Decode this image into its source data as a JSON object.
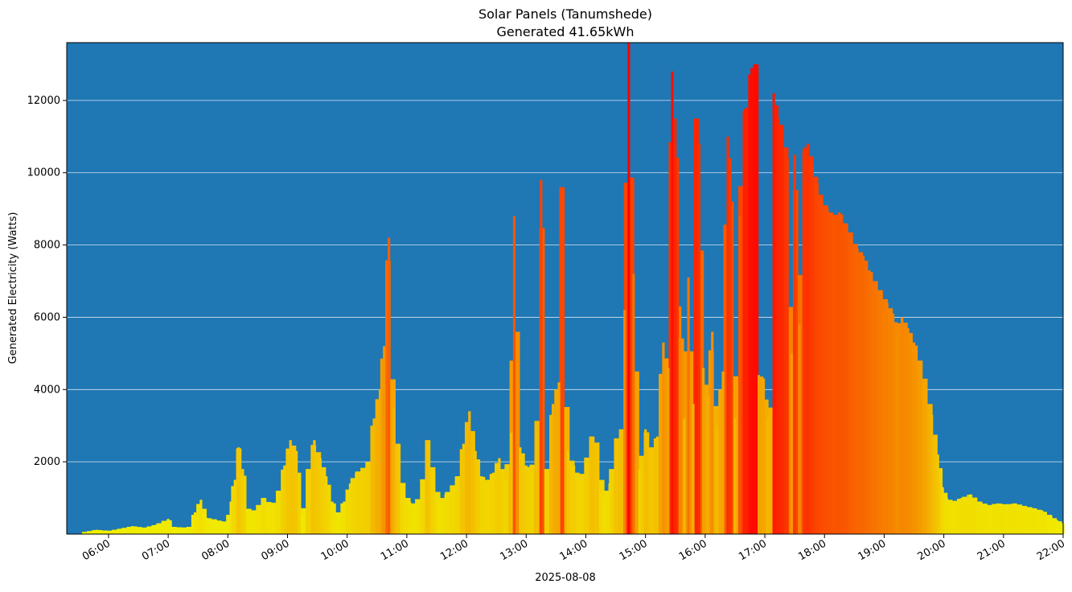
{
  "chart_data": {
    "type": "bar",
    "title": "Solar Panels (Tanumshede)",
    "subtitle": "Generated 41.65kWh",
    "xlabel": "2025-08-08",
    "ylabel": "Generated Electricity (Watts)",
    "ylim": [
      0,
      13600
    ],
    "xlim_hours": [
      5.3,
      22.0
    ],
    "grid": "y",
    "background_color": "#1f77b4",
    "gridline_color": "#d9e6f2",
    "bar_color_low": "#f0f000",
    "bar_color_high": "#ff0000",
    "yticks": [
      2000,
      4000,
      6000,
      8000,
      10000,
      12000
    ],
    "ytick_labels": [
      "2000",
      "4000",
      "6000",
      "8000",
      "10000",
      "12000"
    ],
    "xticks_hours": [
      6,
      7,
      8,
      9,
      10,
      11,
      12,
      13,
      14,
      15,
      16,
      17,
      18,
      19,
      20,
      21,
      22
    ],
    "xtick_labels": [
      "06:00",
      "07:00",
      "08:00",
      "09:00",
      "10:00",
      "11:00",
      "12:00",
      "13:00",
      "14:00",
      "15:00",
      "16:00",
      "17:00",
      "18:00",
      "19:00",
      "20:00",
      "21:00",
      "22:00"
    ],
    "bar_width_minutes": 5,
    "series": [
      {
        "name": "Generated Electricity",
        "points": [
          [
            5.6,
            60
          ],
          [
            5.8,
            120
          ],
          [
            6.0,
            90
          ],
          [
            6.2,
            150
          ],
          [
            6.4,
            220
          ],
          [
            6.6,
            180
          ],
          [
            6.8,
            260
          ],
          [
            7.0,
            420
          ],
          [
            7.1,
            200
          ],
          [
            7.25,
            180
          ],
          [
            7.35,
            200
          ],
          [
            7.45,
            600
          ],
          [
            7.55,
            950
          ],
          [
            7.65,
            450
          ],
          [
            7.8,
            400
          ],
          [
            7.9,
            350
          ],
          [
            8.0,
            350
          ],
          [
            8.05,
            900
          ],
          [
            8.12,
            1500
          ],
          [
            8.18,
            2400
          ],
          [
            8.25,
            1800
          ],
          [
            8.35,
            700
          ],
          [
            8.45,
            650
          ],
          [
            8.6,
            1000
          ],
          [
            8.75,
            800
          ],
          [
            8.85,
            1200
          ],
          [
            8.95,
            1900
          ],
          [
            9.05,
            2600
          ],
          [
            9.15,
            2300
          ],
          [
            9.25,
            500
          ],
          [
            9.35,
            1800
          ],
          [
            9.45,
            2600
          ],
          [
            9.55,
            2100
          ],
          [
            9.65,
            1600
          ],
          [
            9.75,
            900
          ],
          [
            9.85,
            600
          ],
          [
            9.95,
            900
          ],
          [
            10.05,
            1400
          ],
          [
            10.15,
            1700
          ],
          [
            10.25,
            1800
          ],
          [
            10.35,
            2000
          ],
          [
            10.45,
            3200
          ],
          [
            10.55,
            4000
          ],
          [
            10.62,
            5200
          ],
          [
            10.7,
            8200
          ],
          [
            10.78,
            3500
          ],
          [
            10.85,
            2500
          ],
          [
            10.95,
            1200
          ],
          [
            11.05,
            900
          ],
          [
            11.15,
            800
          ],
          [
            11.25,
            1300
          ],
          [
            11.35,
            2600
          ],
          [
            11.45,
            1700
          ],
          [
            11.55,
            900
          ],
          [
            11.65,
            1100
          ],
          [
            11.75,
            1300
          ],
          [
            11.85,
            1600
          ],
          [
            11.95,
            2500
          ],
          [
            12.05,
            3400
          ],
          [
            12.15,
            2300
          ],
          [
            12.25,
            1600
          ],
          [
            12.35,
            1500
          ],
          [
            12.45,
            1700
          ],
          [
            12.55,
            2100
          ],
          [
            12.65,
            1500
          ],
          [
            12.75,
            2800
          ],
          [
            12.8,
            8800
          ],
          [
            12.9,
            2400
          ],
          [
            13.0,
            1900
          ],
          [
            13.08,
            1700
          ],
          [
            13.18,
            2800
          ],
          [
            13.25,
            9800
          ],
          [
            13.35,
            1800
          ],
          [
            13.45,
            3600
          ],
          [
            13.55,
            4200
          ],
          [
            13.6,
            9600
          ],
          [
            13.7,
            2300
          ],
          [
            13.8,
            1900
          ],
          [
            13.9,
            1500
          ],
          [
            14.0,
            2000
          ],
          [
            14.1,
            2700
          ],
          [
            14.2,
            2500
          ],
          [
            14.3,
            1000
          ],
          [
            14.4,
            1400
          ],
          [
            14.5,
            2600
          ],
          [
            14.6,
            2900
          ],
          [
            14.65,
            6200
          ],
          [
            14.72,
            13600
          ],
          [
            14.8,
            7200
          ],
          [
            14.9,
            1800
          ],
          [
            15.0,
            2900
          ],
          [
            15.1,
            2400
          ],
          [
            15.2,
            2700
          ],
          [
            15.3,
            5300
          ],
          [
            15.38,
            4600
          ],
          [
            15.45,
            12800
          ],
          [
            15.5,
            11500
          ],
          [
            15.58,
            6300
          ],
          [
            15.65,
            3200
          ],
          [
            15.72,
            7100
          ],
          [
            15.8,
            3600
          ],
          [
            15.85,
            11500
          ],
          [
            15.9,
            10800
          ],
          [
            15.97,
            4600
          ],
          [
            16.05,
            3800
          ],
          [
            16.12,
            5600
          ],
          [
            16.2,
            3000
          ],
          [
            16.3,
            4500
          ],
          [
            16.38,
            11000
          ],
          [
            16.42,
            10400
          ],
          [
            16.5,
            3200
          ],
          [
            16.58,
            8800
          ],
          [
            16.65,
            11700
          ],
          [
            16.7,
            11800
          ],
          [
            16.78,
            12900
          ],
          [
            16.85,
            13000
          ],
          [
            16.9,
            4400
          ],
          [
            16.98,
            4300
          ],
          [
            17.05,
            3200
          ],
          [
            17.1,
            3500
          ],
          [
            17.15,
            12200
          ],
          [
            17.22,
            11500
          ],
          [
            17.3,
            11200
          ],
          [
            17.38,
            10400
          ],
          [
            17.45,
            5000
          ],
          [
            17.5,
            10500
          ],
          [
            17.58,
            5800
          ],
          [
            17.65,
            10600
          ],
          [
            17.72,
            10800
          ],
          [
            17.8,
            10200
          ],
          [
            17.88,
            9700
          ],
          [
            17.95,
            9300
          ],
          [
            18.05,
            9000
          ],
          [
            18.15,
            8800
          ],
          [
            18.25,
            8900
          ],
          [
            18.35,
            8600
          ],
          [
            18.45,
            8300
          ],
          [
            18.55,
            7900
          ],
          [
            18.65,
            7700
          ],
          [
            18.75,
            7300
          ],
          [
            18.85,
            7000
          ],
          [
            18.95,
            6700
          ],
          [
            19.05,
            6400
          ],
          [
            19.15,
            6100
          ],
          [
            19.22,
            5600
          ],
          [
            19.3,
            6000
          ],
          [
            19.4,
            5700
          ],
          [
            19.5,
            5300
          ],
          [
            19.6,
            4800
          ],
          [
            19.7,
            4200
          ],
          [
            19.8,
            3300
          ],
          [
            19.9,
            2200
          ],
          [
            19.98,
            1300
          ],
          [
            20.05,
            1000
          ],
          [
            20.15,
            900
          ],
          [
            20.3,
            1000
          ],
          [
            20.45,
            1100
          ],
          [
            20.6,
            900
          ],
          [
            20.75,
            800
          ],
          [
            20.9,
            850
          ],
          [
            21.05,
            820
          ],
          [
            21.2,
            850
          ],
          [
            21.35,
            780
          ],
          [
            21.5,
            720
          ],
          [
            21.65,
            650
          ],
          [
            21.8,
            500
          ],
          [
            21.9,
            380
          ],
          [
            22.0,
            300
          ]
        ]
      }
    ]
  }
}
